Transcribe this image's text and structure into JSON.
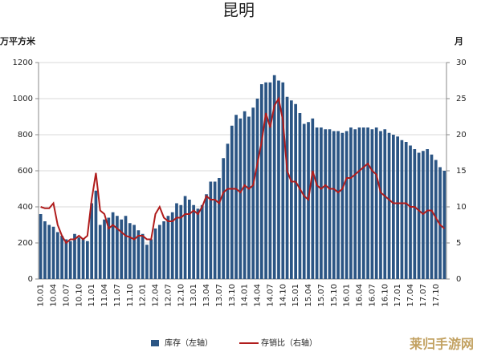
{
  "chart_data": {
    "type": "bar_line",
    "title": "昆明",
    "y_label": "万平方米",
    "y2_label": "月",
    "annotations": [
      "莱归手游网"
    ],
    "categories": [
      "10.01",
      null,
      null,
      "10.04",
      null,
      null,
      "10.07",
      null,
      null,
      "10.10",
      null,
      null,
      "11.01",
      null,
      null,
      "11.04",
      null,
      null,
      "11.07",
      null,
      null,
      "11.10",
      null,
      null,
      "12.01",
      null,
      null,
      "12.04",
      null,
      null,
      "12.07",
      null,
      null,
      "12.10",
      null,
      null,
      "13.01",
      null,
      null,
      "13.04",
      null,
      null,
      "13.07",
      null,
      null,
      "13.10",
      null,
      null,
      "14.01",
      null,
      null,
      "14.04",
      null,
      null,
      "14.07",
      null,
      null,
      "14.10",
      null,
      null,
      "15.01",
      null,
      null,
      "15.04",
      null,
      null,
      "15.07",
      null,
      null,
      "15.10",
      null,
      null,
      "16.01",
      null,
      null,
      "16.04",
      null,
      null,
      "16.07",
      null,
      null,
      "16.10",
      null,
      null,
      "17.01",
      null,
      null,
      "17.04",
      null,
      null,
      "17.07",
      null,
      null,
      "17.10",
      null,
      null
    ],
    "series": [
      {
        "name": "库存（左轴）",
        "type": "bar",
        "color": "#2b5584",
        "values": [
          360,
          320,
          300,
          290,
          260,
          240,
          220,
          210,
          250,
          230,
          220,
          210,
          420,
          490,
          300,
          330,
          340,
          370,
          350,
          330,
          350,
          310,
          300,
          270,
          250,
          190,
          220,
          280,
          300,
          320,
          350,
          370,
          420,
          410,
          460,
          440,
          410,
          390,
          410,
          470,
          540,
          540,
          560,
          670,
          750,
          850,
          910,
          890,
          930,
          900,
          950,
          1000,
          1080,
          1090,
          1090,
          1130,
          1100,
          1090,
          1010,
          990,
          970,
          920,
          860,
          870,
          890,
          840,
          840,
          830,
          830,
          820,
          820,
          810,
          820,
          840,
          830,
          840,
          840,
          840,
          830,
          840,
          820,
          830,
          810,
          800,
          790,
          770,
          760,
          740,
          720,
          700,
          710,
          720,
          690,
          660,
          620,
          600
        ]
      },
      {
        "name": "存销比（右轴）",
        "type": "line",
        "axis": "y2",
        "color": "#b01c1c",
        "values": [
          10,
          9.8,
          9.8,
          10.5,
          7.5,
          6,
          5,
          5.5,
          5.5,
          6,
          5.5,
          6,
          11,
          14.7,
          9.5,
          9,
          7,
          7.5,
          7,
          6.5,
          6,
          5.8,
          5.5,
          6,
          6,
          5.5,
          5.5,
          9,
          10,
          8.5,
          8,
          8,
          8.5,
          8.5,
          9,
          9,
          9.5,
          9,
          10,
          11.5,
          11,
          11,
          10.5,
          12,
          12.5,
          12.5,
          12.5,
          12,
          13,
          12.5,
          13,
          16,
          19,
          23,
          21,
          24,
          25,
          22,
          15,
          13.5,
          13.5,
          12.5,
          11.5,
          11,
          15,
          13,
          12.5,
          13,
          12.5,
          12.5,
          12,
          12.5,
          14,
          14,
          14.5,
          15,
          15.5,
          16,
          15,
          14.5,
          12,
          11.5,
          11,
          10.5,
          10.5,
          10.5,
          10.5,
          10,
          10,
          9.5,
          9,
          9.5,
          9.5,
          8.5,
          7.5,
          7
        ]
      }
    ],
    "ylim": [
      0,
      1200
    ],
    "yticks": [
      0,
      200,
      400,
      600,
      800,
      1000,
      1200
    ],
    "y2lim": [
      0,
      30
    ],
    "y2ticks": [
      0,
      5,
      10,
      15,
      20,
      25,
      30
    ],
    "grid": true
  }
}
